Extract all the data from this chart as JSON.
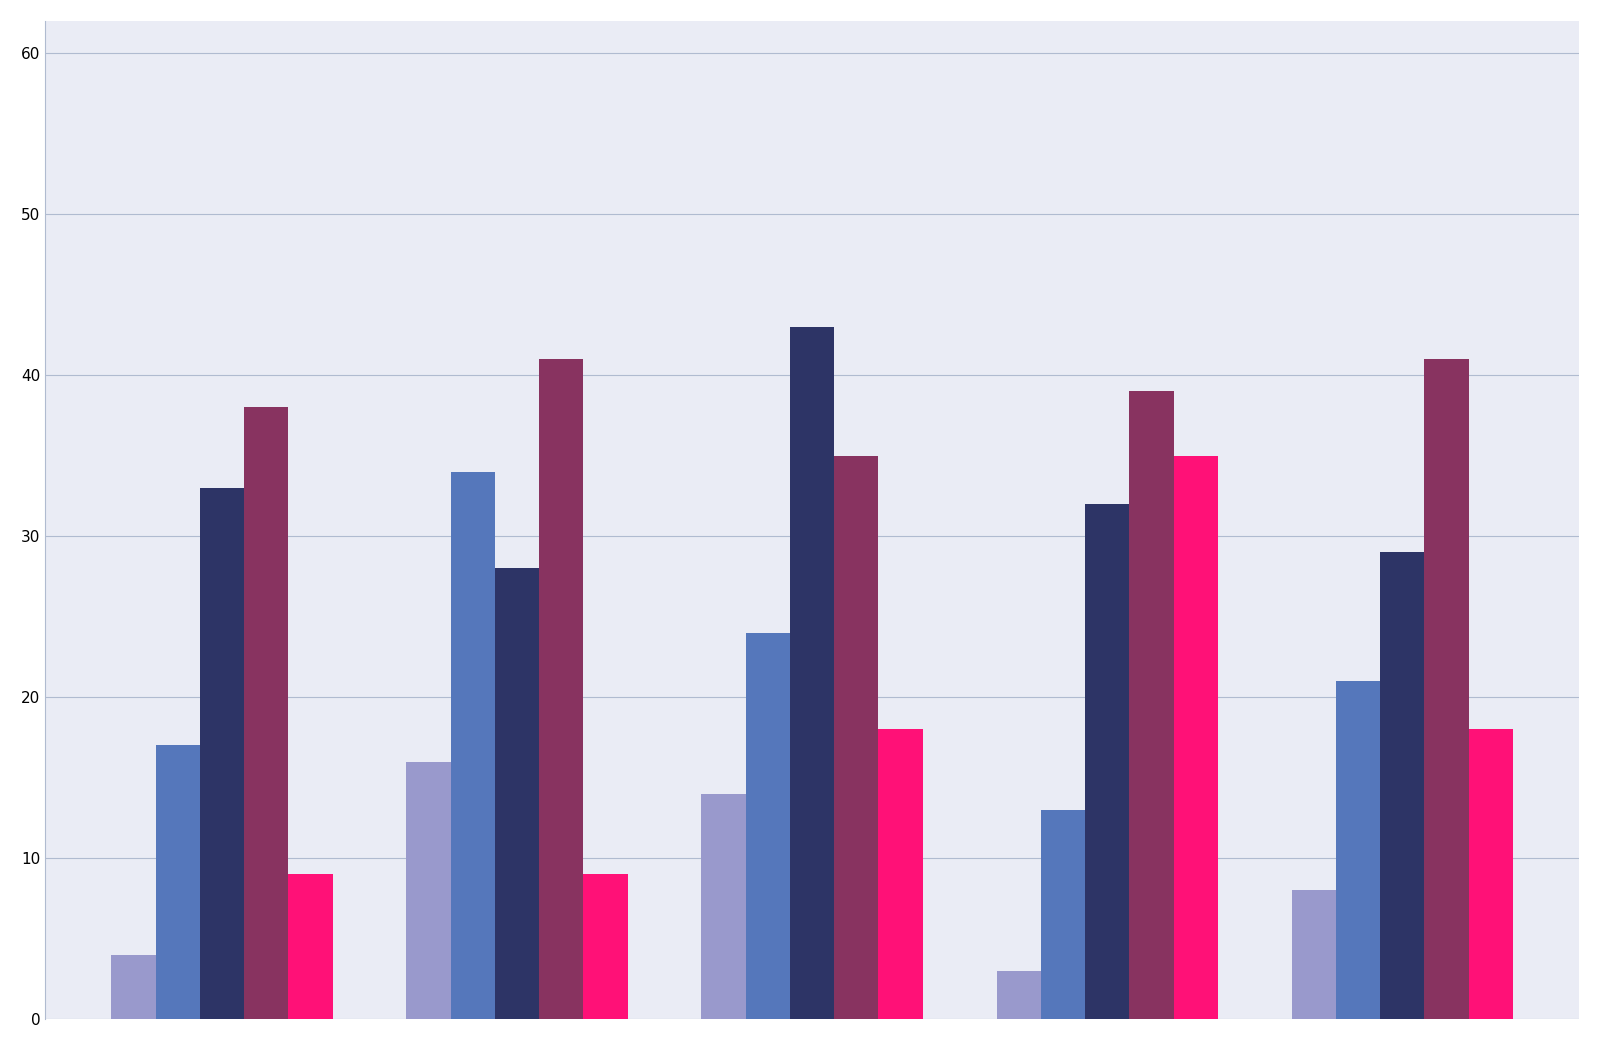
{
  "group_values": [
    [
      4,
      17,
      33,
      38,
      9
    ],
    [
      16,
      34,
      28,
      41,
      9
    ],
    [
      14,
      24,
      43,
      35,
      18
    ],
    [
      3,
      13,
      32,
      39,
      35
    ],
    [
      8,
      21,
      29,
      41,
      18
    ]
  ],
  "bar_colors": [
    "#9999cc",
    "#5577bb",
    "#2d3466",
    "#883360",
    "#ff1177"
  ],
  "ylim": [
    0,
    62
  ],
  "yticks": [
    0,
    10,
    20,
    30,
    40,
    50,
    60
  ],
  "background_color": "#eaecf5",
  "grid_color": "#b0bbd0",
  "outer_bg": "#ffffff",
  "bar_width": 0.15,
  "figsize": [
    16.0,
    10.49
  ],
  "dpi": 100
}
